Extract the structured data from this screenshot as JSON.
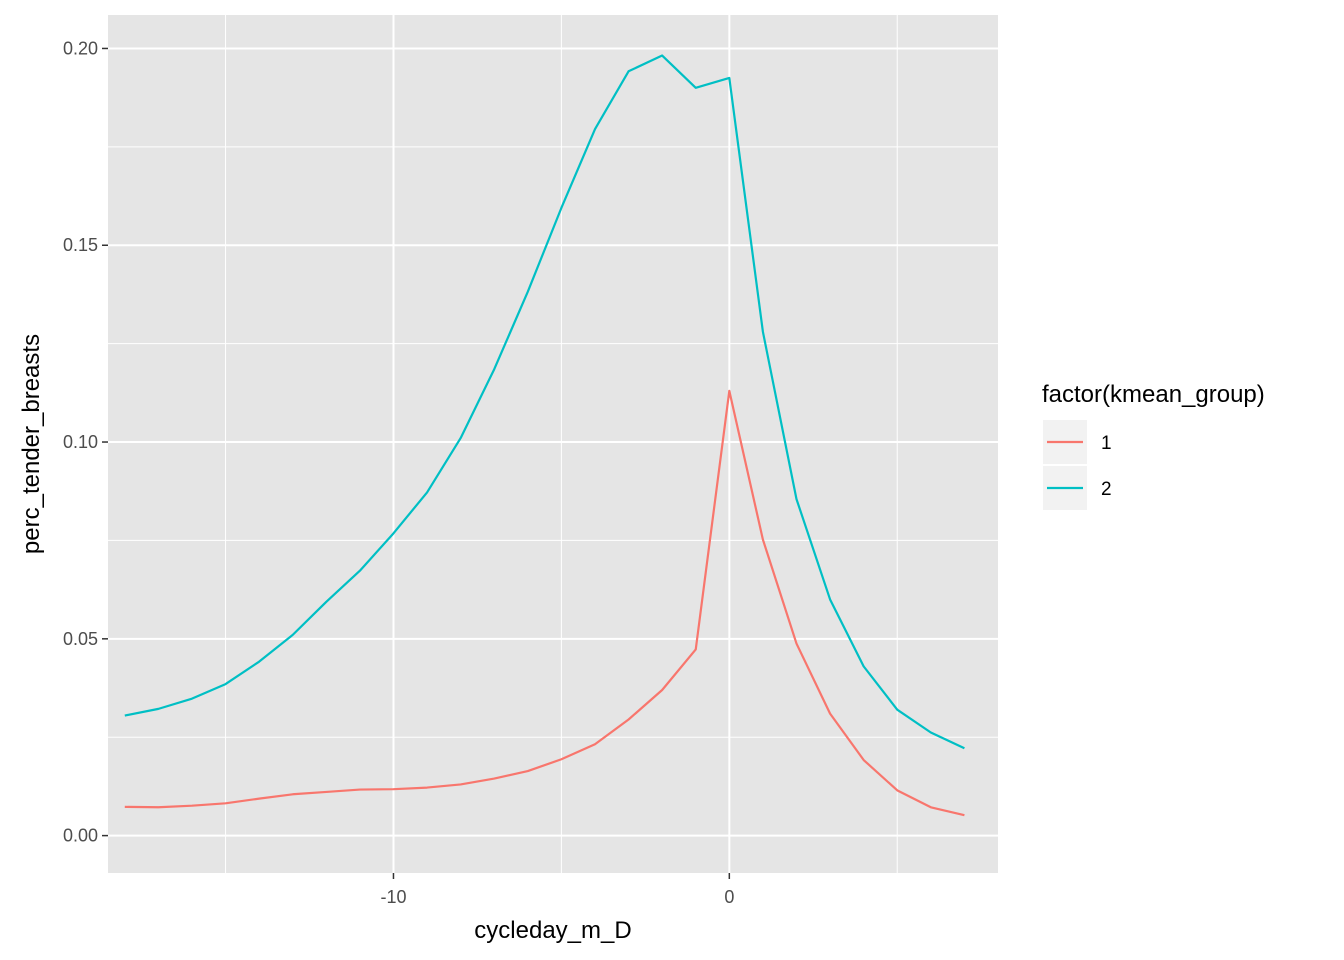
{
  "chart_data": {
    "type": "line",
    "xlabel": "cycleday_m_D",
    "ylabel": "perc_tender_breasts",
    "xlim": [
      -18.5,
      8.0
    ],
    "ylim": [
      -0.0095,
      0.2085
    ],
    "x_ticks": [
      -10,
      0
    ],
    "x_tick_labels": [
      "-10",
      "0"
    ],
    "x_minor_ticks": [
      -15,
      -5,
      5
    ],
    "y_ticks": [
      0.0,
      0.05,
      0.1,
      0.15,
      0.2
    ],
    "y_tick_labels": [
      "0.00",
      "0.05",
      "0.10",
      "0.15",
      "0.20"
    ],
    "y_minor_ticks": [
      0.025,
      0.075,
      0.125,
      0.175
    ],
    "grid": true,
    "panel_background": "#e5e5e5",
    "legend": {
      "title": "factor(kmean_group)",
      "position": "right"
    },
    "x": [
      -18,
      -17,
      -16,
      -15,
      -14,
      -13,
      -12,
      -11,
      -10,
      -9,
      -8,
      -7,
      -6,
      -5,
      -4,
      -3,
      -2,
      -1,
      0,
      1,
      2,
      3,
      4,
      5,
      6,
      7
    ],
    "series": [
      {
        "name": "1",
        "color": "#F8766D",
        "values": [
          0.0073,
          0.0072,
          0.0076,
          0.0082,
          0.0094,
          0.0105,
          0.0111,
          0.0117,
          0.0118,
          0.0122,
          0.013,
          0.0145,
          0.0164,
          0.0194,
          0.0232,
          0.0295,
          0.037,
          0.0473,
          0.113,
          0.0752,
          0.0488,
          0.031,
          0.0192,
          0.0115,
          0.0072,
          0.0052
        ]
      },
      {
        "name": "2",
        "color": "#00BFC4",
        "values": [
          0.0305,
          0.0322,
          0.0348,
          0.0385,
          0.0442,
          0.051,
          0.0594,
          0.0673,
          0.0768,
          0.0872,
          0.101,
          0.1185,
          0.1382,
          0.1595,
          0.1795,
          0.1942,
          0.1982,
          0.19,
          0.1925,
          0.128,
          0.0855,
          0.06,
          0.043,
          0.032,
          0.0262,
          0.0222
        ]
      }
    ]
  }
}
